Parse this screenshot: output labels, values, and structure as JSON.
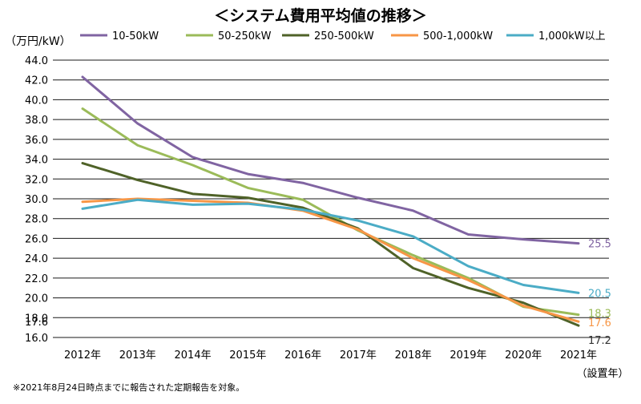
{
  "chart_data": {
    "type": "line",
    "title": "＜システム費用平均値の推移＞",
    "ylabel": "（万円/kW）",
    "xlabel": "（設置年）",
    "ylim": [
      16.0,
      44.0
    ],
    "y_ticks": [
      "16.0",
      "17.6",
      "18.0",
      "20.0",
      "22.0",
      "24.0",
      "26.0",
      "28.0",
      "30.0",
      "32.0",
      "34.0",
      "36.0",
      "38.0",
      "40.0",
      "42.0",
      "44.0"
    ],
    "y_tick_values": [
      16,
      17.6,
      18,
      20,
      22,
      24,
      26,
      28,
      30,
      32,
      34,
      36,
      38,
      40,
      42,
      44
    ],
    "categories": [
      "2012年",
      "2013年",
      "2014年",
      "2015年",
      "2016年",
      "2017年",
      "2018年",
      "2019年",
      "2020年",
      "2021年"
    ],
    "series": [
      {
        "name": "10-50kW",
        "color": "#8064a2",
        "values": [
          42.3,
          37.6,
          34.2,
          32.5,
          31.6,
          30.1,
          28.8,
          26.4,
          25.9,
          25.5
        ],
        "end_label": "25.5"
      },
      {
        "name": "50-250kW",
        "color": "#9bbb59",
        "values": [
          39.1,
          35.4,
          33.4,
          31.1,
          29.9,
          26.8,
          24.3,
          22.0,
          19.1,
          18.3
        ],
        "end_label": "18.3"
      },
      {
        "name": "250-500kW",
        "color": "#4f6228",
        "values": [
          33.6,
          31.9,
          30.5,
          30.1,
          29.1,
          27.0,
          23.0,
          21.0,
          19.5,
          17.2
        ],
        "end_label": "17.2"
      },
      {
        "name": "500-1,000kW",
        "color": "#f79646",
        "values": [
          29.7,
          30.0,
          29.8,
          29.6,
          28.8,
          26.9,
          24.0,
          21.8,
          19.2,
          17.6
        ],
        "end_label": "17.6"
      },
      {
        "name": "1,000kW以上",
        "color": "#4bacc6",
        "values": [
          29.0,
          29.9,
          29.4,
          29.5,
          28.9,
          27.8,
          26.2,
          23.2,
          21.3,
          20.5
        ],
        "end_label": "20.5"
      }
    ],
    "note": "※2021年8月24日時点までに報告された定期報告を対象。"
  }
}
